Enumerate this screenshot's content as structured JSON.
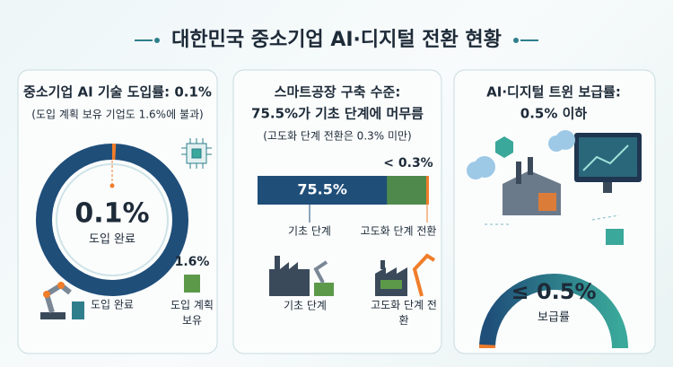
{
  "title": "대한민국 중소기업 AI·디지털 전환 현황",
  "chart_data": [
    {
      "type": "donut",
      "title": [
        "중소기업 AI 기술 도입률: 0.1%"
      ],
      "subtitle": "(도입 계획 보유 기업도 1.6%에 불과)",
      "categories": [
        "도입 완료",
        "도입 계획 보유"
      ],
      "values": [
        0.1,
        1.6
      ],
      "value_labels": [
        "0.1%",
        "1.6%"
      ],
      "colors": [
        "#f07d2a",
        "#5c9a4a"
      ],
      "ylim": [
        0,
        100
      ]
    },
    {
      "type": "stacked_bar",
      "title": [
        "스마트공장 구축 수준:",
        "75.5%가 기초 단계에 머무름"
      ],
      "subtitle": "(고도화 단계 전환은 0.3% 미만)",
      "categories": [
        "기초 단계",
        "고도화 단계 전환"
      ],
      "values": [
        75.5,
        0.3
      ],
      "value_labels": [
        "75.5%",
        "< 0.3%"
      ],
      "colors": [
        "#1f4e79",
        "#f07d2a"
      ],
      "ylim": [
        0,
        100
      ]
    },
    {
      "type": "gauge",
      "title": [
        "AI·디지털 트윈 보급률:",
        "0.5% 이하"
      ],
      "categories": [
        "보급률"
      ],
      "values": [
        0.5
      ],
      "value_labels": [
        "≤ 0.5%"
      ],
      "colors": [
        "#f07d2a"
      ],
      "ylim": [
        0,
        100
      ]
    }
  ]
}
